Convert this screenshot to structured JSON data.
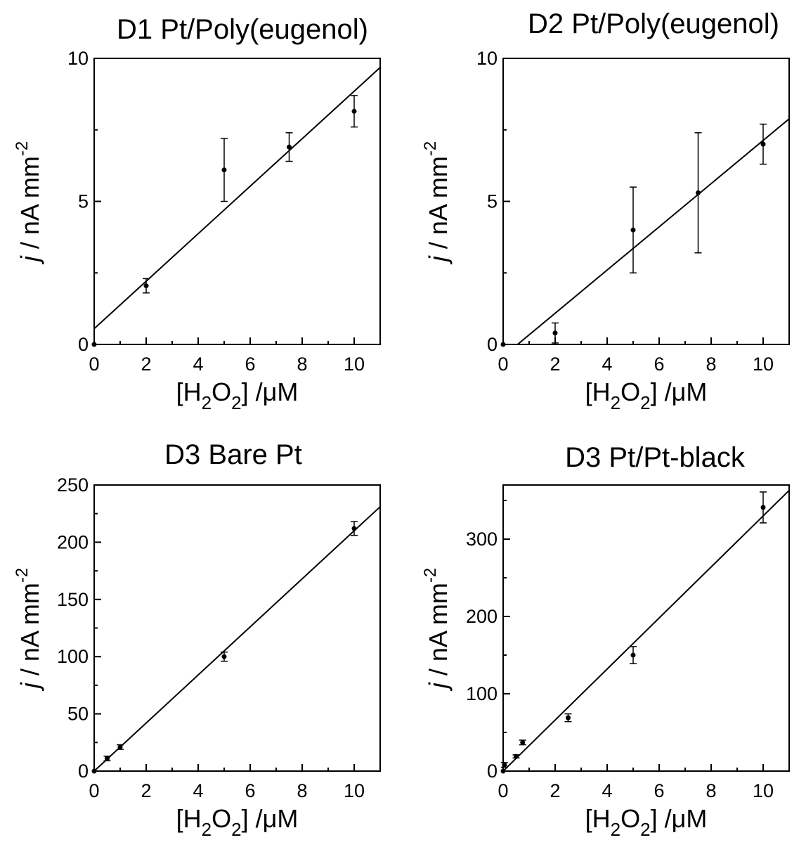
{
  "chart_data": [
    {
      "type": "scatter",
      "title": "D1  Pt/Poly(eugenol)",
      "xlabel_parts": [
        "[H",
        "2",
        "O",
        "2",
        "]  /μM"
      ],
      "ylabel_parts": [
        "j",
        " / nA mm",
        "-2"
      ],
      "xlim": [
        0,
        11
      ],
      "ylim": [
        0,
        10
      ],
      "xticks": [
        0,
        2,
        4,
        6,
        8,
        10
      ],
      "yticks": [
        0,
        5,
        10
      ],
      "xminor": [
        1,
        3,
        5,
        7,
        9
      ],
      "yminor": [
        2.5,
        7.5
      ],
      "points": [
        {
          "x": 0,
          "y": 0,
          "err": 0
        },
        {
          "x": 2,
          "y": 2.05,
          "err": 0.25
        },
        {
          "x": 5,
          "y": 6.1,
          "err": 1.1
        },
        {
          "x": 7.5,
          "y": 6.9,
          "err": 0.5
        },
        {
          "x": 10,
          "y": 8.15,
          "err": 0.55
        }
      ],
      "fit": {
        "slope": 0.83,
        "intercept": 0.55
      }
    },
    {
      "type": "scatter",
      "title": "D2  Pt/Poly(eugenol)",
      "xlabel_parts": [
        "[H",
        "2",
        "O",
        "2",
        "]  /μM"
      ],
      "ylabel_parts": [
        "j",
        " / nA mm",
        "-2"
      ],
      "xlim": [
        0,
        11
      ],
      "ylim": [
        0,
        10
      ],
      "xticks": [
        0,
        2,
        4,
        6,
        8,
        10
      ],
      "yticks": [
        0,
        5,
        10
      ],
      "xminor": [
        1,
        3,
        5,
        7,
        9
      ],
      "yminor": [
        2.5,
        7.5
      ],
      "points": [
        {
          "x": 0,
          "y": 0,
          "err": 0
        },
        {
          "x": 2,
          "y": 0.4,
          "err": 0.35
        },
        {
          "x": 5,
          "y": 4.0,
          "err": 1.5
        },
        {
          "x": 7.5,
          "y": 5.3,
          "err": 2.1
        },
        {
          "x": 10,
          "y": 7.0,
          "err": 0.7
        }
      ],
      "fit": {
        "slope": 0.755,
        "intercept": -0.42
      }
    },
    {
      "type": "scatter",
      "title": "D3  Bare Pt",
      "xlabel_parts": [
        "[H",
        "2",
        "O",
        "2",
        "]  /μM"
      ],
      "ylabel_parts": [
        "j",
        " / nA mm",
        "-2"
      ],
      "xlim": [
        0,
        11
      ],
      "ylim": [
        0,
        250
      ],
      "xticks": [
        0,
        2,
        4,
        6,
        8,
        10
      ],
      "yticks": [
        0,
        50,
        100,
        150,
        200,
        250
      ],
      "xminor": [
        1,
        3,
        5,
        7,
        9
      ],
      "yminor": [
        25,
        75,
        125,
        175,
        225
      ],
      "points": [
        {
          "x": 0,
          "y": 0,
          "err": 0
        },
        {
          "x": 0.5,
          "y": 11,
          "err": 2
        },
        {
          "x": 1,
          "y": 21,
          "err": 2
        },
        {
          "x": 5,
          "y": 100,
          "err": 4
        },
        {
          "x": 10,
          "y": 212,
          "err": 6
        }
      ],
      "fit": {
        "slope": 21,
        "intercept": 0
      }
    },
    {
      "type": "scatter",
      "title": "D3  Pt/Pt-black",
      "xlabel_parts": [
        "[H",
        "2",
        "O",
        "2",
        "]  /μM"
      ],
      "ylabel_parts": [
        "j",
        " / nA mm",
        "-2"
      ],
      "xlim": [
        0,
        11
      ],
      "ylim": [
        0,
        370
      ],
      "xticks": [
        0,
        2,
        4,
        6,
        8,
        10
      ],
      "yticks": [
        0,
        100,
        200,
        300
      ],
      "xminor": [
        1,
        3,
        5,
        7,
        9
      ],
      "yminor": [
        50,
        150,
        250,
        350
      ],
      "points": [
        {
          "x": 0,
          "y": 0,
          "err": 0
        },
        {
          "x": 0.05,
          "y": 8,
          "err": 3
        },
        {
          "x": 0.5,
          "y": 19,
          "err": 2
        },
        {
          "x": 0.75,
          "y": 37,
          "err": 3
        },
        {
          "x": 2.5,
          "y": 69,
          "err": 5
        },
        {
          "x": 5,
          "y": 150,
          "err": 11
        },
        {
          "x": 10,
          "y": 341,
          "err": 20
        }
      ],
      "fit": {
        "slope": 33,
        "intercept": 0
      }
    }
  ]
}
